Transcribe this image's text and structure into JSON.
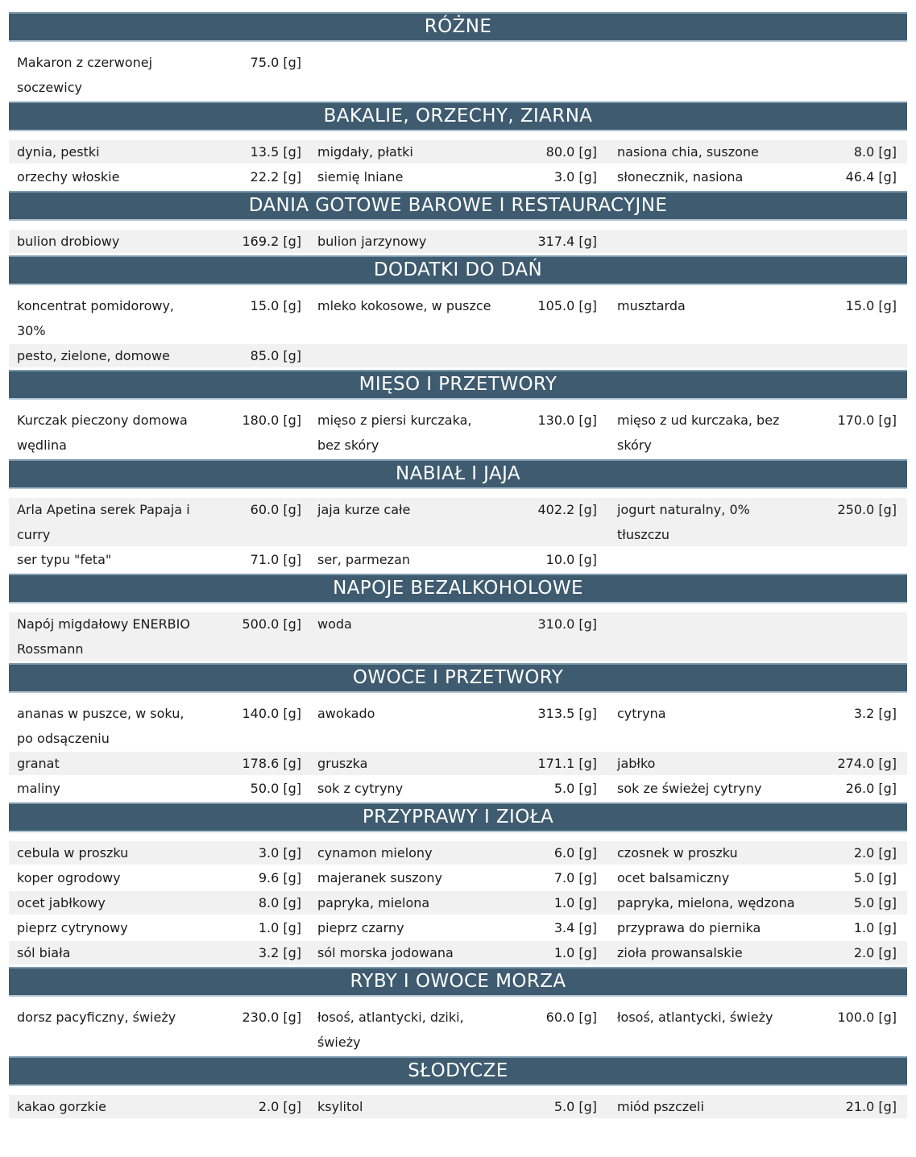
{
  "unit": "[g]",
  "colors": {
    "header_bg": "#3e5b70",
    "header_border_top": "#7d99ae",
    "header_border_bottom": "#b0c4d2",
    "header_text": "#ffffff",
    "row_alt_bg": "#f1f1f1",
    "text": "#1b1b1b",
    "page_bg": "#ffffff"
  },
  "sections": [
    {
      "title": "RÓŻNE",
      "rows": [
        [
          {
            "name": "Makaron z czerwonej soczewicy",
            "amount": "75.0"
          }
        ]
      ]
    },
    {
      "title": "BAKALIE, ORZECHY, ZIARNA",
      "rows": [
        [
          {
            "name": "dynia, pestki",
            "amount": "13.5"
          },
          {
            "name": "migdały, płatki",
            "amount": "80.0"
          },
          {
            "name": "nasiona chia, suszone",
            "amount": "8.0"
          }
        ],
        [
          {
            "name": "orzechy włoskie",
            "amount": "22.2"
          },
          {
            "name": "siemię lniane",
            "amount": "3.0"
          },
          {
            "name": "słonecznik, nasiona",
            "amount": "46.4"
          }
        ]
      ]
    },
    {
      "title": "DANIA GOTOWE BAROWE I RESTAURACYJNE",
      "rows": [
        [
          {
            "name": "bulion drobiowy",
            "amount": "169.2"
          },
          {
            "name": "bulion jarzynowy",
            "amount": "317.4"
          }
        ]
      ]
    },
    {
      "title": "DODATKI DO DAŃ",
      "rows": [
        [
          {
            "name": "koncentrat pomidorowy, 30%",
            "amount": "15.0"
          },
          {
            "name": "mleko kokosowe, w puszce",
            "amount": "105.0"
          },
          {
            "name": "musztarda",
            "amount": "15.0"
          }
        ],
        [
          {
            "name": "pesto, zielone, domowe",
            "amount": "85.0"
          }
        ]
      ]
    },
    {
      "title": "MIĘSO I PRZETWORY",
      "rows": [
        [
          {
            "name": "Kurczak pieczony domowa wędlina",
            "amount": "180.0"
          },
          {
            "name": "mięso z piersi kurczaka, bez skóry",
            "amount": "130.0"
          },
          {
            "name": "mięso z ud kurczaka, bez skóry",
            "amount": "170.0"
          }
        ]
      ]
    },
    {
      "title": "NABIAŁ I JAJA",
      "rows": [
        [
          {
            "name": "Arla Apetina serek Papaja i curry",
            "amount": "60.0"
          },
          {
            "name": "jaja kurze całe",
            "amount": "402.2"
          },
          {
            "name": "jogurt naturalny, 0% tłuszczu",
            "amount": "250.0"
          }
        ],
        [
          {
            "name": "ser typu \"feta\"",
            "amount": "71.0"
          },
          {
            "name": "ser, parmezan",
            "amount": "10.0"
          }
        ]
      ]
    },
    {
      "title": "NAPOJE BEZALKOHOLOWE",
      "rows": [
        [
          {
            "name": "Napój migdałowy ENERBIO Rossmann",
            "amount": "500.0"
          },
          {
            "name": "woda",
            "amount": "310.0"
          }
        ]
      ]
    },
    {
      "title": "OWOCE I PRZETWORY",
      "rows": [
        [
          {
            "name": "ananas w puszce, w soku, po odsączeniu",
            "amount": "140.0"
          },
          {
            "name": "awokado",
            "amount": "313.5"
          },
          {
            "name": "cytryna",
            "amount": "3.2"
          }
        ],
        [
          {
            "name": "granat",
            "amount": "178.6"
          },
          {
            "name": "gruszka",
            "amount": "171.1"
          },
          {
            "name": "jabłko",
            "amount": "274.0"
          }
        ],
        [
          {
            "name": "maliny",
            "amount": "50.0"
          },
          {
            "name": "sok z cytryny",
            "amount": "5.0"
          },
          {
            "name": "sok ze świeżej cytryny",
            "amount": "26.0"
          }
        ]
      ]
    },
    {
      "title": "PRZYPRAWY I ZIOŁA",
      "rows": [
        [
          {
            "name": "cebula w proszku",
            "amount": "3.0"
          },
          {
            "name": "cynamon mielony",
            "amount": "6.0"
          },
          {
            "name": "czosnek w proszku",
            "amount": "2.0"
          }
        ],
        [
          {
            "name": "koper ogrodowy",
            "amount": "9.6"
          },
          {
            "name": "majeranek suszony",
            "amount": "7.0"
          },
          {
            "name": "ocet balsamiczny",
            "amount": "5.0"
          }
        ],
        [
          {
            "name": "ocet jabłkowy",
            "amount": "8.0"
          },
          {
            "name": "papryka, mielona",
            "amount": "1.0"
          },
          {
            "name": "papryka, mielona, wędzona",
            "amount": "5.0"
          }
        ],
        [
          {
            "name": "pieprz cytrynowy",
            "amount": "1.0"
          },
          {
            "name": "pieprz czarny",
            "amount": "3.4"
          },
          {
            "name": "przyprawa do piernika",
            "amount": "1.0"
          }
        ],
        [
          {
            "name": "sól biała",
            "amount": "3.2"
          },
          {
            "name": "sól morska jodowana",
            "amount": "1.0"
          },
          {
            "name": "zioła prowansalskie",
            "amount": "2.0"
          }
        ]
      ]
    },
    {
      "title": "RYBY I OWOCE MORZA",
      "rows": [
        [
          {
            "name": "dorsz pacyficzny, świeży",
            "amount": "230.0"
          },
          {
            "name": "łosoś, atlantycki, dziki, świeży",
            "amount": "60.0"
          },
          {
            "name": "łosoś, atlantycki, świeży",
            "amount": "100.0"
          }
        ]
      ]
    },
    {
      "title": "SŁODYCZE",
      "rows": [
        [
          {
            "name": "kakao gorzkie",
            "amount": "2.0"
          },
          {
            "name": "ksylitol",
            "amount": "5.0"
          },
          {
            "name": "miód pszczeli",
            "amount": "21.0"
          }
        ]
      ]
    }
  ]
}
